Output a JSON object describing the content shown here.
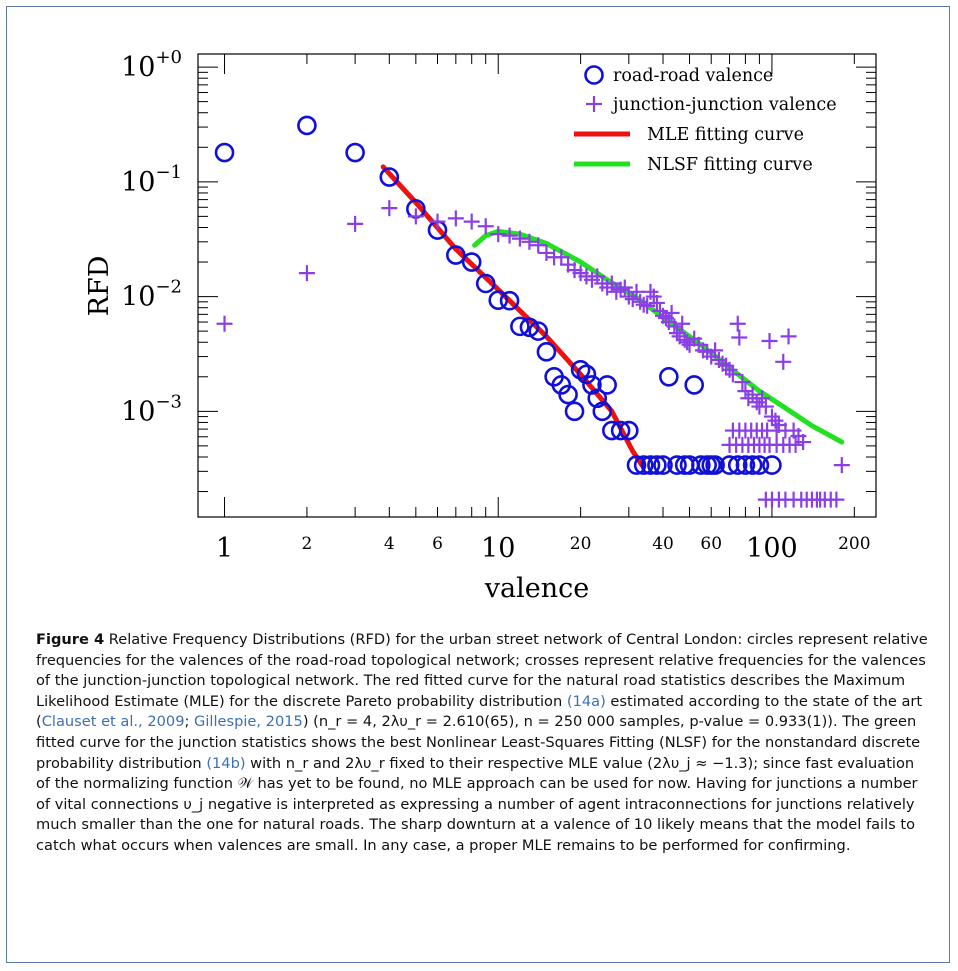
{
  "chart_data": {
    "type": "scatter",
    "xscale": "log",
    "yscale": "log",
    "xlabel": "valence",
    "ylabel": "RFD",
    "xlim": [
      0.8,
      240
    ],
    "ylim": [
      0.00012,
      1.3
    ],
    "x_ticks_major": [
      {
        "value": 1,
        "label": "1"
      },
      {
        "value": 10,
        "label": "10"
      },
      {
        "value": 100,
        "label": "100"
      }
    ],
    "x_ticks_minor_labeled": [
      {
        "value": 2,
        "label": "2"
      },
      {
        "value": 4,
        "label": "4"
      },
      {
        "value": 6,
        "label": "6"
      },
      {
        "value": 20,
        "label": "20"
      },
      {
        "value": 40,
        "label": "40"
      },
      {
        "value": 60,
        "label": "60"
      },
      {
        "value": 200,
        "label": "200"
      }
    ],
    "y_ticks": [
      {
        "value": 1,
        "base": "10",
        "exp": "+0"
      },
      {
        "value": 0.1,
        "base": "10",
        "exp": "−1"
      },
      {
        "value": 0.01,
        "base": "10",
        "exp": "−2"
      },
      {
        "value": 0.001,
        "base": "10",
        "exp": "−3"
      }
    ],
    "legend": {
      "position": "top-right",
      "entries": [
        {
          "label": "road-road valence",
          "marker": "circle",
          "color": "#1010d8"
        },
        {
          "label": "junction-junction valence",
          "marker": "plus",
          "color": "#8a3fe6"
        },
        {
          "label": "MLE fitting curve",
          "marker": "line",
          "color": "#ee1111"
        },
        {
          "label": "NLSF fitting curve",
          "marker": "line",
          "color": "#22e022"
        }
      ]
    },
    "series": [
      {
        "name": "road-road valence",
        "marker": "circle",
        "color": "#1010d8",
        "points": [
          [
            1,
            0.18
          ],
          [
            2,
            0.31
          ],
          [
            3,
            0.18
          ],
          [
            4,
            0.11
          ],
          [
            5,
            0.058
          ],
          [
            6,
            0.038
          ],
          [
            7,
            0.023
          ],
          [
            8,
            0.02
          ],
          [
            9,
            0.013
          ],
          [
            10,
            0.0093
          ],
          [
            11,
            0.0092
          ],
          [
            12,
            0.0055
          ],
          [
            13,
            0.0054
          ],
          [
            14,
            0.005
          ],
          [
            15,
            0.0033
          ],
          [
            16,
            0.002
          ],
          [
            17,
            0.0017
          ],
          [
            18,
            0.0014
          ],
          [
            19,
            0.001
          ],
          [
            20,
            0.0023
          ],
          [
            21,
            0.0021
          ],
          [
            22,
            0.0017
          ],
          [
            23,
            0.0013
          ],
          [
            24,
            0.001
          ],
          [
            25,
            0.0017
          ],
          [
            26,
            0.00068
          ],
          [
            28,
            0.00068
          ],
          [
            30,
            0.00068
          ],
          [
            32,
            0.00034
          ],
          [
            34,
            0.00034
          ],
          [
            36,
            0.00034
          ],
          [
            38,
            0.00034
          ],
          [
            40,
            0.00034
          ],
          [
            42,
            0.002
          ],
          [
            45,
            0.00034
          ],
          [
            48,
            0.00034
          ],
          [
            50,
            0.00034
          ],
          [
            52,
            0.0017
          ],
          [
            55,
            0.00034
          ],
          [
            58,
            0.00034
          ],
          [
            60,
            0.00034
          ],
          [
            62,
            0.00034
          ],
          [
            70,
            0.00034
          ],
          [
            75,
            0.00034
          ],
          [
            80,
            0.00034
          ],
          [
            85,
            0.00034
          ],
          [
            90,
            0.00034
          ],
          [
            100,
            0.00034
          ]
        ]
      },
      {
        "name": "junction-junction valence",
        "marker": "plus",
        "color": "#8a3fe6",
        "points": [
          [
            1,
            0.0058
          ],
          [
            2,
            0.016
          ],
          [
            3,
            0.043
          ],
          [
            4,
            0.059
          ],
          [
            5,
            0.05
          ],
          [
            6,
            0.045
          ],
          [
            7,
            0.048
          ],
          [
            8,
            0.045
          ],
          [
            9,
            0.041
          ],
          [
            10,
            0.035
          ],
          [
            11,
            0.034
          ],
          [
            12,
            0.032
          ],
          [
            13,
            0.03
          ],
          [
            14,
            0.028
          ],
          [
            15,
            0.024
          ],
          [
            16,
            0.022
          ],
          [
            17,
            0.022
          ],
          [
            18,
            0.019
          ],
          [
            19,
            0.017
          ],
          [
            20,
            0.016
          ],
          [
            21,
            0.015
          ],
          [
            22,
            0.014
          ],
          [
            23,
            0.015
          ],
          [
            24,
            0.013
          ],
          [
            25,
            0.012
          ],
          [
            26,
            0.013
          ],
          [
            27,
            0.011
          ],
          [
            28,
            0.0115
          ],
          [
            29,
            0.012
          ],
          [
            30,
            0.01
          ],
          [
            31,
            0.0095
          ],
          [
            32,
            0.011
          ],
          [
            33,
            0.009
          ],
          [
            34,
            0.0085
          ],
          [
            35,
            0.0083
          ],
          [
            36,
            0.011
          ],
          [
            37,
            0.01
          ],
          [
            38,
            0.0088
          ],
          [
            39,
            0.0075
          ],
          [
            40,
            0.0068
          ],
          [
            41,
            0.0065
          ],
          [
            42,
            0.006
          ],
          [
            43,
            0.0072
          ],
          [
            44,
            0.0055
          ],
          [
            45,
            0.0048
          ],
          [
            46,
            0.0045
          ],
          [
            47,
            0.0058
          ],
          [
            48,
            0.0042
          ],
          [
            49,
            0.004
          ],
          [
            50,
            0.0038
          ],
          [
            52,
            0.0043
          ],
          [
            54,
            0.0038
          ],
          [
            56,
            0.0034
          ],
          [
            58,
            0.0033
          ],
          [
            60,
            0.003
          ],
          [
            62,
            0.0034
          ],
          [
            64,
            0.0028
          ],
          [
            66,
            0.0026
          ],
          [
            68,
            0.0025
          ],
          [
            70,
            0.0023
          ],
          [
            72,
            0.0021
          ],
          [
            75,
            0.0058
          ],
          [
            76,
            0.0044
          ],
          [
            78,
            0.0018
          ],
          [
            80,
            0.0015
          ],
          [
            82,
            0.0013
          ],
          [
            85,
            0.0014
          ],
          [
            88,
            0.0012
          ],
          [
            90,
            0.0011
          ],
          [
            92,
            0.0013
          ],
          [
            95,
            0.0011
          ],
          [
            98,
            0.0041
          ],
          [
            100,
            0.0009
          ],
          [
            103,
            0.00083
          ],
          [
            106,
            0.00076
          ],
          [
            110,
            0.0027
          ],
          [
            115,
            0.0045
          ],
          [
            120,
            0.00068
          ],
          [
            125,
            0.00061
          ],
          [
            130,
            0.00054
          ],
          [
            180,
            0.00034
          ],
          [
            72,
            0.00068
          ],
          [
            76,
            0.00068
          ],
          [
            80,
            0.00068
          ],
          [
            84,
            0.00068
          ],
          [
            88,
            0.00068
          ],
          [
            92,
            0.00068
          ],
          [
            96,
            0.00068
          ],
          [
            104,
            0.00068
          ],
          [
            112,
            0.00068
          ],
          [
            70,
            0.00051
          ],
          [
            74,
            0.00051
          ],
          [
            78,
            0.00051
          ],
          [
            82,
            0.00051
          ],
          [
            86,
            0.00051
          ],
          [
            90,
            0.00051
          ],
          [
            94,
            0.00051
          ],
          [
            98,
            0.00051
          ],
          [
            104,
            0.00051
          ],
          [
            110,
            0.00051
          ],
          [
            116,
            0.00051
          ],
          [
            122,
            0.00051
          ],
          [
            95,
            0.00017
          ],
          [
            100,
            0.00017
          ],
          [
            106,
            0.00017
          ],
          [
            112,
            0.00017
          ],
          [
            120,
            0.00017
          ],
          [
            128,
            0.00017
          ],
          [
            134,
            0.00017
          ],
          [
            140,
            0.00017
          ],
          [
            146,
            0.00017
          ],
          [
            150,
            0.00017
          ],
          [
            156,
            0.00017
          ],
          [
            164,
            0.00017
          ],
          [
            172,
            0.00017
          ]
        ]
      }
    ],
    "fits": [
      {
        "name": "MLE fitting curve",
        "color": "#ee1111",
        "points": [
          [
            3.8,
            0.135
          ],
          [
            5,
            0.066
          ],
          [
            7,
            0.026
          ],
          [
            10,
            0.0115
          ],
          [
            15,
            0.0045
          ],
          [
            20,
            0.0021
          ],
          [
            26,
            0.001
          ],
          [
            31,
            0.00045
          ],
          [
            33.5,
            0.00034
          ]
        ]
      },
      {
        "name": "NLSF fitting curve",
        "color": "#22e022",
        "points": [
          [
            8.2,
            0.028
          ],
          [
            9,
            0.034
          ],
          [
            10,
            0.037
          ],
          [
            12,
            0.035
          ],
          [
            15,
            0.029
          ],
          [
            20,
            0.02
          ],
          [
            25,
            0.014
          ],
          [
            32,
            0.0098
          ],
          [
            40,
            0.0066
          ],
          [
            55,
            0.0038
          ],
          [
            70,
            0.0024
          ],
          [
            90,
            0.0015
          ],
          [
            110,
            0.0011
          ],
          [
            140,
            0.00075
          ],
          [
            180,
            0.00054
          ]
        ]
      }
    ]
  },
  "caption": {
    "label": "Figure 4",
    "s1": " Relative Frequency Distributions (RFD) for the urban street network of Central London: circles represent relative frequencies for the valences of the road-road topological network; crosses represent relative frequencies for the valences of the junction-junction topological network. The red fitted curve for the natural road statistics describes the Maximum Likelihood Estimate (MLE) for the discrete Pareto probability distribution ",
    "ref1": "(14a)",
    "s2": " estimated according to the state of the art (",
    "cite1": "Clauset et al., 2009",
    "s3": "; ",
    "cite2": "Gillespie, 2015",
    "s4": ") (n_r = 4, 2λυ_r = 2.610(65), n = 250 000 samples, p-value = 0.933(1)). The green fitted curve for the junction statistics shows the best Nonlinear Least-Squares Fitting (NLSF) for the nonstandard discrete probability distribution ",
    "ref2": "(14b)",
    "s5": " with n_r and 2λυ_r fixed to their respective MLE value (2λυ_j ≈ −1.3); since fast evaluation of the normalizing function 𝒲 has yet to be found, no MLE approach can be used for now. Having for junctions a number of vital connections υ_j negative is interpreted as expressing a number of agent intraconnections for junctions relatively much smaller than the one for natural roads. The sharp downturn at a valence of 10 likely means that the model fails to catch what occurs when valences are small. In any case, a proper MLE remains to be performed for confirming."
  }
}
